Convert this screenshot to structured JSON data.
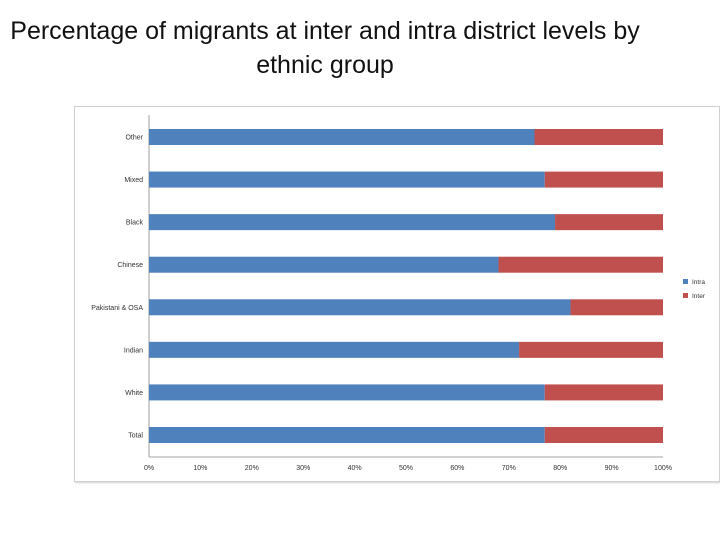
{
  "slide": {
    "title": "Percentage of migrants at inter and intra district levels by ethnic group"
  },
  "chart_data": {
    "type": "bar",
    "orientation": "horizontal",
    "stacked": "percent",
    "title": "",
    "xlabel": "",
    "ylabel": "",
    "categories": [
      "Other",
      "Mixed",
      "Black",
      "Chinese",
      "Pakistani & OSA",
      "Indian",
      "White",
      "Total"
    ],
    "series": [
      {
        "name": "Intra",
        "color": "#4f81bd",
        "values": [
          75,
          77,
          79,
          68,
          82,
          72,
          77,
          77
        ]
      },
      {
        "name": "Inter",
        "color": "#c0504d",
        "values": [
          25,
          23,
          21,
          32,
          18,
          28,
          23,
          23
        ]
      }
    ],
    "xlim": [
      0,
      100
    ],
    "x_tick_labels": [
      "0%",
      "10%",
      "20%",
      "30%",
      "40%",
      "50%",
      "60%",
      "70%",
      "80%",
      "90%",
      "100%"
    ],
    "grid": false,
    "legend_position": "right"
  }
}
